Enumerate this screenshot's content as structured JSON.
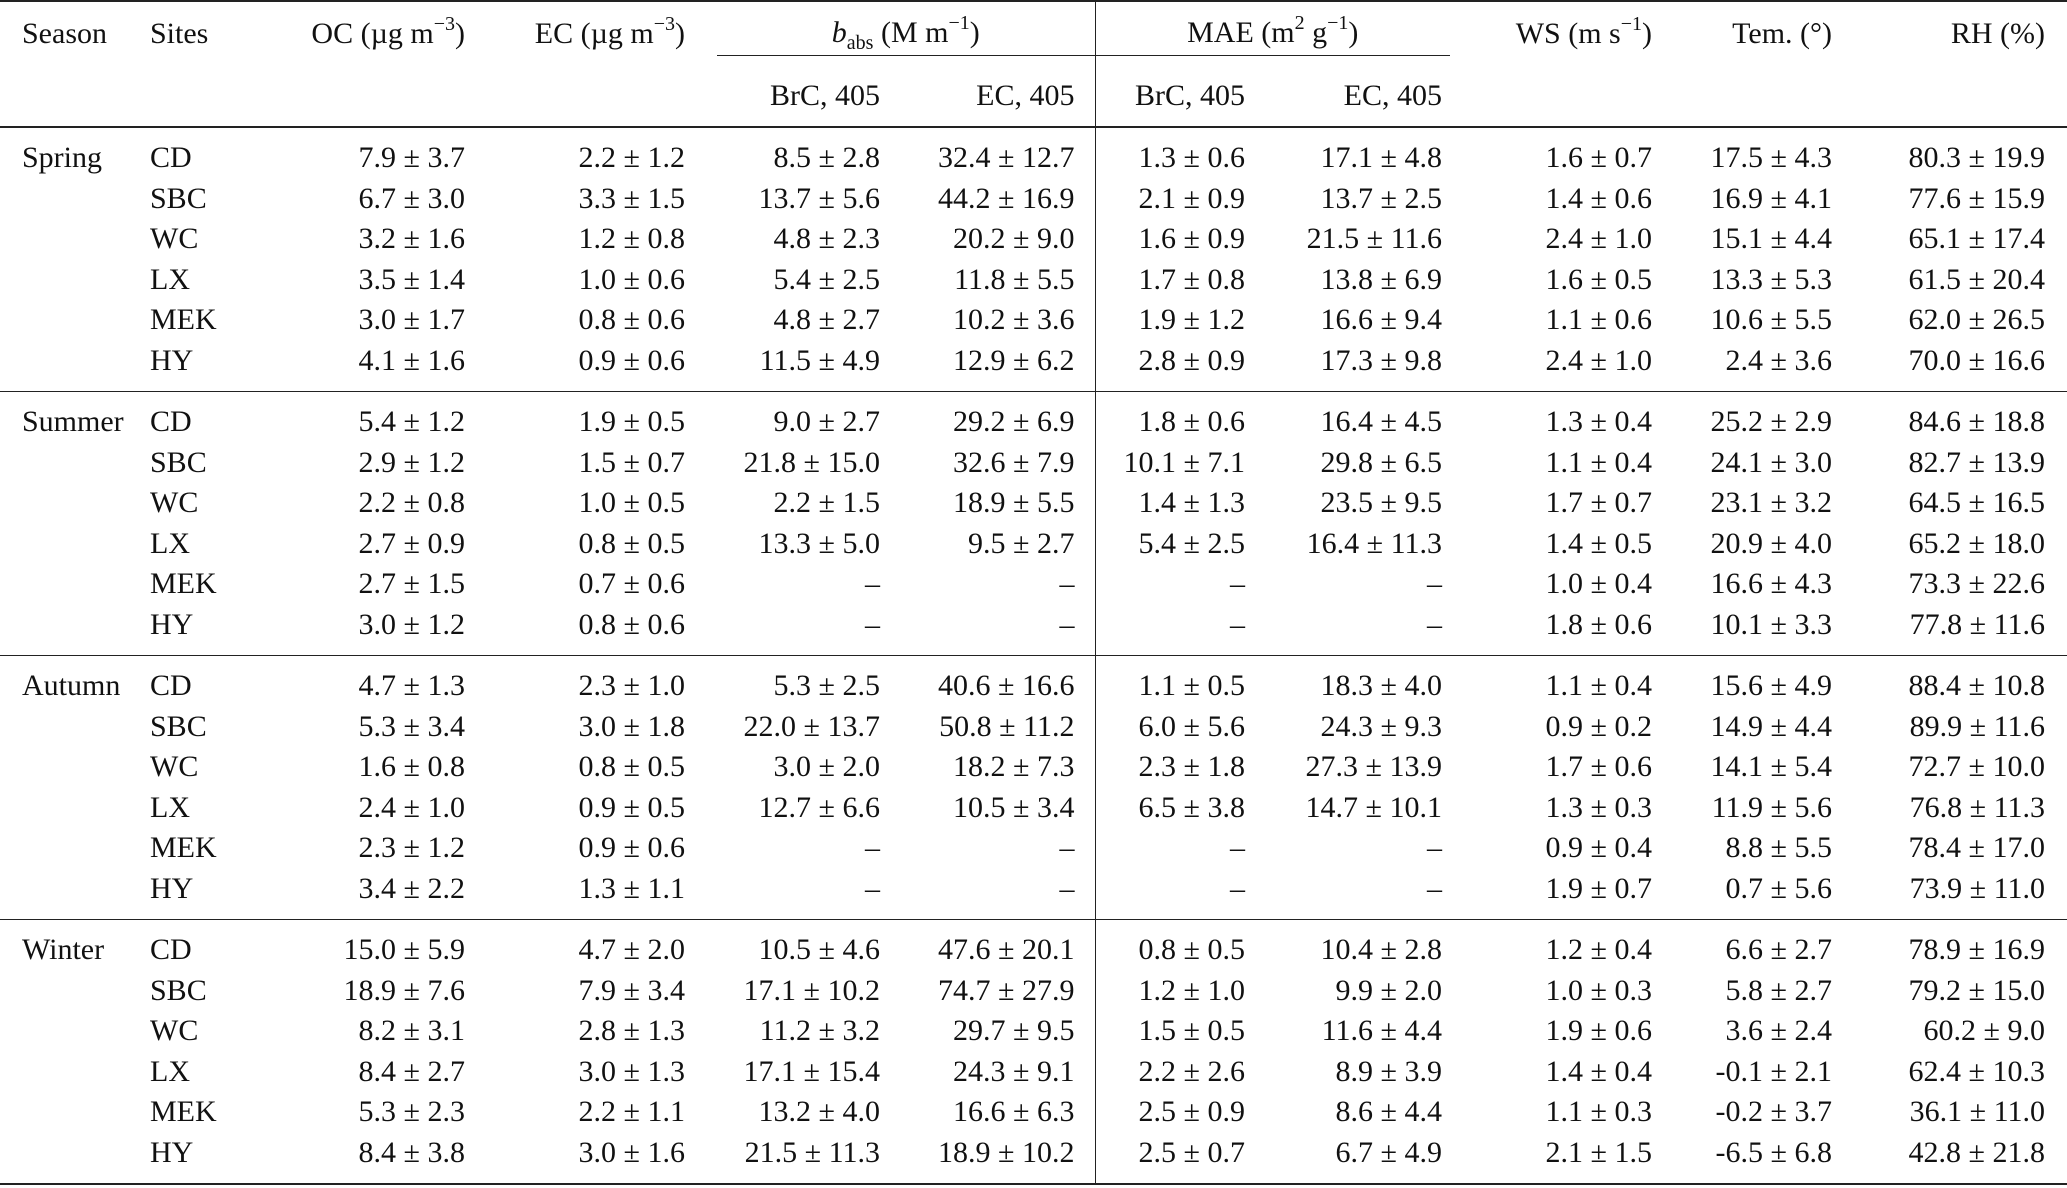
{
  "header": {
    "season": "Season",
    "sites": "Sites",
    "oc": "OC (µg m",
    "oc_exp": "−3",
    "oc_close": ")",
    "ec": "EC (µg m",
    "ec_exp": "−3",
    "ec_close": ")",
    "babs_b": "b",
    "babs_sub": "abs",
    "babs_unit": " (M m",
    "babs_exp": "−1",
    "babs_close": ")",
    "mae": "MAE (m",
    "mae_exp1": "2",
    "mae_mid": " g",
    "mae_exp2": "−1",
    "mae_close": ")",
    "ws": "WS (m s",
    "ws_exp": "−1",
    "ws_close": ")",
    "tem": "Tem. (°)",
    "rh": "RH (%)",
    "babs_brc": "BrC, 405",
    "babs_ec": "EC, 405",
    "mae_brc": "BrC, 405",
    "mae_ec": "EC, 405"
  },
  "groups": [
    {
      "season": "Spring",
      "rows": [
        {
          "site": "CD",
          "oc": "7.9 ± 3.7",
          "ec": "2.2 ± 1.2",
          "babs_brc": "8.5 ± 2.8",
          "babs_ec": "32.4 ± 12.7",
          "mae_brc": "1.3 ± 0.6",
          "mae_ec": "17.1 ± 4.8",
          "ws": "1.6 ± 0.7",
          "tem": "17.5 ± 4.3",
          "rh": "80.3 ± 19.9"
        },
        {
          "site": "SBC",
          "oc": "6.7 ± 3.0",
          "ec": "3.3 ± 1.5",
          "babs_brc": "13.7 ± 5.6",
          "babs_ec": "44.2 ± 16.9",
          "mae_brc": "2.1 ± 0.9",
          "mae_ec": "13.7 ± 2.5",
          "ws": "1.4 ± 0.6",
          "tem": "16.9 ± 4.1",
          "rh": "77.6 ± 15.9"
        },
        {
          "site": "WC",
          "oc": "3.2 ± 1.6",
          "ec": "1.2 ± 0.8",
          "babs_brc": "4.8 ± 2.3",
          "babs_ec": "20.2 ± 9.0",
          "mae_brc": "1.6 ± 0.9",
          "mae_ec": "21.5 ± 11.6",
          "ws": "2.4 ± 1.0",
          "tem": "15.1 ± 4.4",
          "rh": "65.1 ± 17.4"
        },
        {
          "site": "LX",
          "oc": "3.5 ± 1.4",
          "ec": "1.0 ± 0.6",
          "babs_brc": "5.4 ± 2.5",
          "babs_ec": "11.8 ± 5.5",
          "mae_brc": "1.7 ± 0.8",
          "mae_ec": "13.8 ± 6.9",
          "ws": "1.6 ± 0.5",
          "tem": "13.3 ± 5.3",
          "rh": "61.5 ± 20.4"
        },
        {
          "site": "MEK",
          "oc": "3.0 ± 1.7",
          "ec": "0.8 ± 0.6",
          "babs_brc": "4.8 ± 2.7",
          "babs_ec": "10.2 ± 3.6",
          "mae_brc": "1.9 ± 1.2",
          "mae_ec": "16.6 ± 9.4",
          "ws": "1.1 ± 0.6",
          "tem": "10.6 ± 5.5",
          "rh": "62.0 ± 26.5"
        },
        {
          "site": "HY",
          "oc": "4.1 ± 1.6",
          "ec": "0.9 ± 0.6",
          "babs_brc": "11.5 ± 4.9",
          "babs_ec": "12.9 ± 6.2",
          "mae_brc": "2.8 ± 0.9",
          "mae_ec": "17.3 ± 9.8",
          "ws": "2.4 ± 1.0",
          "tem": "2.4 ± 3.6",
          "rh": "70.0 ± 16.6"
        }
      ]
    },
    {
      "season": "Summer",
      "rows": [
        {
          "site": "CD",
          "oc": "5.4 ± 1.2",
          "ec": "1.9 ± 0.5",
          "babs_brc": "9.0 ± 2.7",
          "babs_ec": "29.2 ± 6.9",
          "mae_brc": "1.8 ± 0.6",
          "mae_ec": "16.4 ± 4.5",
          "ws": "1.3 ± 0.4",
          "tem": "25.2 ± 2.9",
          "rh": "84.6 ± 18.8"
        },
        {
          "site": "SBC",
          "oc": "2.9 ± 1.2",
          "ec": "1.5 ± 0.7",
          "babs_brc": "21.8 ± 15.0",
          "babs_ec": "32.6 ± 7.9",
          "mae_brc": "10.1 ± 7.1",
          "mae_ec": "29.8 ± 6.5",
          "ws": "1.1 ± 0.4",
          "tem": "24.1 ± 3.0",
          "rh": "82.7 ± 13.9"
        },
        {
          "site": "WC",
          "oc": "2.2 ± 0.8",
          "ec": "1.0 ± 0.5",
          "babs_brc": "2.2 ± 1.5",
          "babs_ec": "18.9 ± 5.5",
          "mae_brc": "1.4 ± 1.3",
          "mae_ec": "23.5 ± 9.5",
          "ws": "1.7 ± 0.7",
          "tem": "23.1 ± 3.2",
          "rh": "64.5 ± 16.5"
        },
        {
          "site": "LX",
          "oc": "2.7 ± 0.9",
          "ec": "0.8 ± 0.5",
          "babs_brc": "13.3 ± 5.0",
          "babs_ec": "9.5 ± 2.7",
          "mae_brc": "5.4 ± 2.5",
          "mae_ec": "16.4 ± 11.3",
          "ws": "1.4 ± 0.5",
          "tem": "20.9 ± 4.0",
          "rh": "65.2 ± 18.0"
        },
        {
          "site": "MEK",
          "oc": "2.7 ± 1.5",
          "ec": "0.7 ± 0.6",
          "babs_brc": "–",
          "babs_ec": "–",
          "mae_brc": "–",
          "mae_ec": "–",
          "ws": "1.0 ± 0.4",
          "tem": "16.6 ± 4.3",
          "rh": "73.3 ± 22.6"
        },
        {
          "site": "HY",
          "oc": "3.0 ± 1.2",
          "ec": "0.8 ± 0.6",
          "babs_brc": "–",
          "babs_ec": "–",
          "mae_brc": "–",
          "mae_ec": "–",
          "ws": "1.8 ± 0.6",
          "tem": "10.1 ± 3.3",
          "rh": "77.8 ± 11.6"
        }
      ]
    },
    {
      "season": "Autumn",
      "rows": [
        {
          "site": "CD",
          "oc": "4.7 ± 1.3",
          "ec": "2.3 ± 1.0",
          "babs_brc": "5.3 ± 2.5",
          "babs_ec": "40.6 ± 16.6",
          "mae_brc": "1.1 ± 0.5",
          "mae_ec": "18.3 ± 4.0",
          "ws": "1.1 ± 0.4",
          "tem": "15.6 ± 4.9",
          "rh": "88.4 ± 10.8"
        },
        {
          "site": "SBC",
          "oc": "5.3 ± 3.4",
          "ec": "3.0 ± 1.8",
          "babs_brc": "22.0 ± 13.7",
          "babs_ec": "50.8 ± 11.2",
          "mae_brc": "6.0 ± 5.6",
          "mae_ec": "24.3 ± 9.3",
          "ws": "0.9 ± 0.2",
          "tem": "14.9 ± 4.4",
          "rh": "89.9 ± 11.6"
        },
        {
          "site": "WC",
          "oc": "1.6 ± 0.8",
          "ec": "0.8 ± 0.5",
          "babs_brc": "3.0 ± 2.0",
          "babs_ec": "18.2 ± 7.3",
          "mae_brc": "2.3 ± 1.8",
          "mae_ec": "27.3 ± 13.9",
          "ws": "1.7 ± 0.6",
          "tem": "14.1 ± 5.4",
          "rh": "72.7 ± 10.0"
        },
        {
          "site": "LX",
          "oc": "2.4 ± 1.0",
          "ec": "0.9 ± 0.5",
          "babs_brc": "12.7 ± 6.6",
          "babs_ec": "10.5 ± 3.4",
          "mae_brc": "6.5 ± 3.8",
          "mae_ec": "14.7 ± 10.1",
          "ws": "1.3 ± 0.3",
          "tem": "11.9 ± 5.6",
          "rh": "76.8 ± 11.3"
        },
        {
          "site": "MEK",
          "oc": "2.3 ± 1.2",
          "ec": "0.9 ± 0.6",
          "babs_brc": "–",
          "babs_ec": "–",
          "mae_brc": "–",
          "mae_ec": "–",
          "ws": "0.9 ± 0.4",
          "tem": "8.8 ± 5.5",
          "rh": "78.4 ± 17.0"
        },
        {
          "site": "HY",
          "oc": "3.4 ± 2.2",
          "ec": "1.3 ± 1.1",
          "babs_brc": "–",
          "babs_ec": "–",
          "mae_brc": "–",
          "mae_ec": "–",
          "ws": "1.9 ± 0.7",
          "tem": "0.7 ± 5.6",
          "rh": "73.9 ± 11.0"
        }
      ]
    },
    {
      "season": "Winter",
      "rows": [
        {
          "site": "CD",
          "oc": "15.0 ± 5.9",
          "ec": "4.7 ± 2.0",
          "babs_brc": "10.5 ± 4.6",
          "babs_ec": "47.6 ± 20.1",
          "mae_brc": "0.8 ± 0.5",
          "mae_ec": "10.4 ± 2.8",
          "ws": "1.2 ± 0.4",
          "tem": "6.6 ± 2.7",
          "rh": "78.9 ± 16.9"
        },
        {
          "site": "SBC",
          "oc": "18.9 ± 7.6",
          "ec": "7.9 ± 3.4",
          "babs_brc": "17.1 ± 10.2",
          "babs_ec": "74.7 ± 27.9",
          "mae_brc": "1.2 ± 1.0",
          "mae_ec": "9.9 ± 2.0",
          "ws": "1.0 ± 0.3",
          "tem": "5.8 ± 2.7",
          "rh": "79.2 ± 15.0"
        },
        {
          "site": "WC",
          "oc": "8.2 ± 3.1",
          "ec": "2.8 ± 1.3",
          "babs_brc": "11.2 ± 3.2",
          "babs_ec": "29.7 ± 9.5",
          "mae_brc": "1.5 ± 0.5",
          "mae_ec": "11.6 ± 4.4",
          "ws": "1.9 ± 0.6",
          "tem": "3.6 ± 2.4",
          "rh": "60.2 ± 9.0"
        },
        {
          "site": "LX",
          "oc": "8.4 ± 2.7",
          "ec": "3.0 ± 1.3",
          "babs_brc": "17.1 ± 15.4",
          "babs_ec": "24.3 ± 9.1",
          "mae_brc": "2.2 ± 2.6",
          "mae_ec": "8.9 ± 3.9",
          "ws": "1.4 ± 0.4",
          "tem": "-0.1 ± 2.1",
          "rh": "62.4 ± 10.3"
        },
        {
          "site": "MEK",
          "oc": "5.3 ± 2.3",
          "ec": "2.2 ± 1.1",
          "babs_brc": "13.2 ± 4.0",
          "babs_ec": "16.6 ± 6.3",
          "mae_brc": "2.5 ± 0.9",
          "mae_ec": "8.6 ± 4.4",
          "ws": "1.1 ± 0.3",
          "tem": "-0.2 ± 3.7",
          "rh": "36.1 ± 11.0"
        },
        {
          "site": "HY",
          "oc": "8.4 ± 3.8",
          "ec": "3.0 ± 1.6",
          "babs_brc": "21.5 ± 11.3",
          "babs_ec": "18.9 ± 10.2",
          "mae_brc": "2.5 ± 0.7",
          "mae_ec": "6.7 ± 4.9",
          "ws": "2.1 ± 1.5",
          "tem": "-6.5 ± 6.8",
          "rh": "42.8 ± 21.8"
        }
      ]
    }
  ]
}
